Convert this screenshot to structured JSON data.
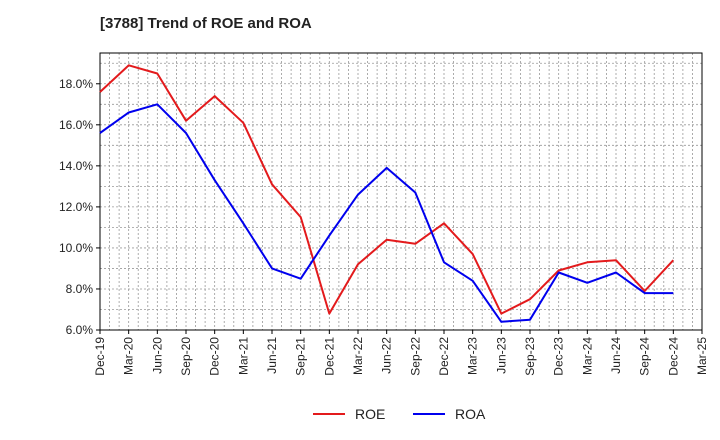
{
  "chart_data": {
    "type": "line",
    "title": "[3788]  Trend of ROE and ROA",
    "xlabel": "",
    "ylabel": "",
    "x_ticks": [
      "Dec-19",
      "Mar-20",
      "Jun-20",
      "Sep-20",
      "Dec-20",
      "Mar-21",
      "Jun-21",
      "Sep-21",
      "Dec-21",
      "Mar-22",
      "Jun-22",
      "Sep-22",
      "Dec-22",
      "Mar-23",
      "Jun-23",
      "Sep-23",
      "Dec-23",
      "Mar-24",
      "Jun-24",
      "Sep-24",
      "Dec-24",
      "Mar-25"
    ],
    "y_ticks": [
      "6.0%",
      "8.0%",
      "10.0%",
      "12.0%",
      "14.0%",
      "16.0%",
      "18.0%"
    ],
    "ylim": [
      6.0,
      19.5
    ],
    "grid": true,
    "legend_position": "bottom-center",
    "series": [
      {
        "name": "ROE",
        "color": "#e31a1c",
        "x": [
          "Dec-19",
          "Mar-20",
          "Jun-20",
          "Sep-20",
          "Dec-20",
          "Mar-21",
          "Jun-21",
          "Sep-21",
          "Dec-21",
          "Mar-22",
          "Jun-22",
          "Sep-22",
          "Dec-22",
          "Mar-23",
          "Jun-23",
          "Sep-23",
          "Dec-23",
          "Mar-24",
          "Jun-24",
          "Sep-24",
          "Dec-24"
        ],
        "values": [
          17.6,
          18.9,
          18.5,
          16.2,
          17.4,
          16.1,
          13.1,
          11.5,
          6.8,
          9.2,
          10.4,
          10.2,
          11.2,
          9.7,
          6.8,
          7.5,
          8.9,
          9.3,
          9.4,
          7.9,
          9.4
        ]
      },
      {
        "name": "ROA",
        "color": "#0000ee",
        "x": [
          "Dec-19",
          "Mar-20",
          "Jun-20",
          "Sep-20",
          "Dec-20",
          "Mar-21",
          "Jun-21",
          "Sep-21",
          "Dec-21",
          "Mar-22",
          "Jun-22",
          "Sep-22",
          "Dec-22",
          "Mar-23",
          "Jun-23",
          "Sep-23",
          "Dec-23",
          "Mar-24",
          "Jun-24",
          "Sep-24",
          "Dec-24"
        ],
        "values": [
          15.6,
          16.6,
          17.0,
          15.6,
          13.3,
          11.2,
          9.0,
          8.5,
          10.6,
          12.6,
          13.9,
          12.7,
          9.3,
          8.4,
          6.4,
          6.5,
          8.8,
          8.3,
          8.8,
          7.8,
          7.8
        ]
      }
    ]
  }
}
